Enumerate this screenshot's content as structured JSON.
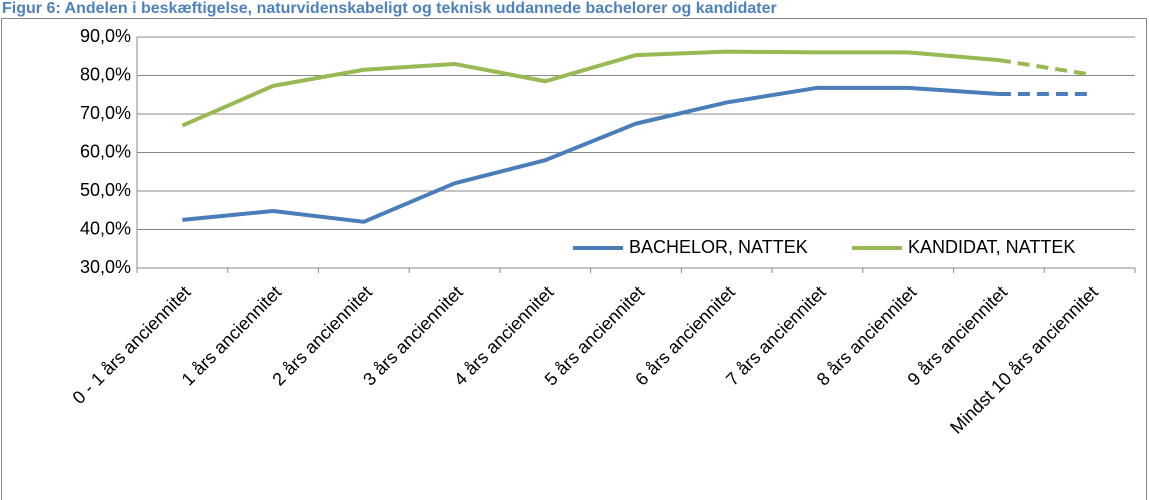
{
  "chart_data": {
    "type": "line",
    "title": "Figur 6: Andelen i beskæftigelse, naturvidenskabeligt og teknisk uddannede bachelorer og kandidater",
    "categories": [
      "0 - 1 års anciennitet",
      "1 års anciennitet",
      "2 års anciennitet",
      "3 års anciennitet",
      "4 års anciennitet",
      "5 års anciennitet",
      "6 års anciennitet",
      "7 års anciennitet",
      "8 års anciennitet",
      "9 års anciennitet",
      "Mindst 10 års anciennitet"
    ],
    "series": [
      {
        "name": "BACHELOR, NATTEK",
        "color": "#4a7ebb",
        "values": [
          42.5,
          44.8,
          42.0,
          52.0,
          58.0,
          67.5,
          73.0,
          76.8,
          76.8,
          75.2,
          75.2
        ]
      },
      {
        "name": "KANDIDAT, NATTEK",
        "color": "#98b954",
        "values": [
          67.0,
          77.3,
          81.5,
          83.0,
          78.5,
          85.3,
          86.2,
          86.0,
          86.0,
          84.0,
          80.3
        ]
      }
    ],
    "dashed_last_segment": true,
    "ylim": [
      30,
      90
    ],
    "yticks": [
      {
        "value": 30,
        "label": "30,0%"
      },
      {
        "value": 40,
        "label": "40,0%"
      },
      {
        "value": 50,
        "label": "50,0%"
      },
      {
        "value": 60,
        "label": "60,0%"
      },
      {
        "value": 70,
        "label": "70,0%"
      },
      {
        "value": 80,
        "label": "80,0%"
      },
      {
        "value": 90,
        "label": "90,0%"
      }
    ],
    "grid": true,
    "legend": "lower right"
  }
}
